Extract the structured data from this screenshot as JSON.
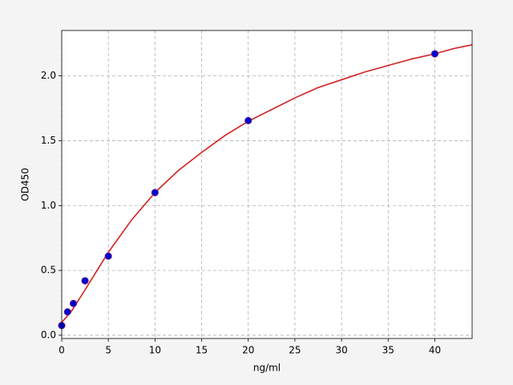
{
  "chart_data": {
    "type": "scatter",
    "xlabel": "ng/ml",
    "ylabel": "OD450",
    "xlim": [
      0,
      44
    ],
    "ylim": [
      -0.025,
      2.35
    ],
    "xticks": [
      0,
      5,
      10,
      15,
      20,
      25,
      30,
      35,
      40
    ],
    "yticks": [
      {
        "value": 0,
        "label": "0.0"
      },
      0.5,
      {
        "value": 1,
        "label": "1.0"
      },
      1.5,
      {
        "value": 2,
        "label": "2.0"
      }
    ],
    "grid": true,
    "series": [
      {
        "type": "scatter",
        "color": "#0000cc",
        "x": [
          0,
          0.625,
          1.25,
          2.5,
          5,
          10,
          20,
          40
        ],
        "values": [
          0.075,
          0.18,
          0.245,
          0.42,
          0.61,
          1.1,
          1.655,
          2.17
        ]
      },
      {
        "type": "line",
        "color": "#d62020",
        "x": [
          0,
          1,
          2.5,
          5,
          7.5,
          10,
          12.5,
          15,
          17.5,
          20,
          22.5,
          25,
          27.5,
          30,
          32.5,
          35,
          37.5,
          40,
          42,
          44
        ],
        "values": [
          0.1,
          0.18,
          0.35,
          0.64,
          0.89,
          1.1,
          1.27,
          1.41,
          1.54,
          1.65,
          1.74,
          1.83,
          1.91,
          1.97,
          2.03,
          2.08,
          2.13,
          2.17,
          2.21,
          2.24
        ]
      }
    ]
  }
}
